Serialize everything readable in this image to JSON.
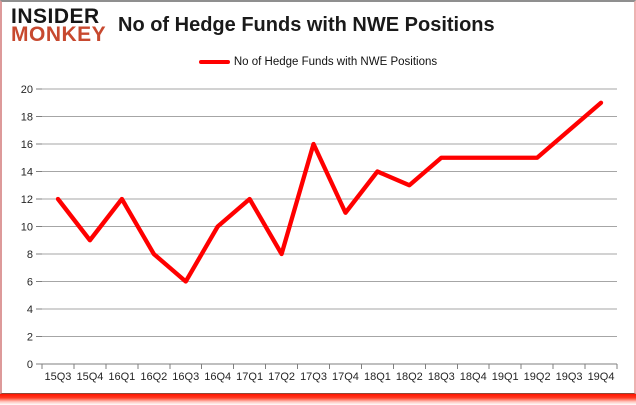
{
  "logo": {
    "line1": "INSIDER",
    "line2": "MONKEY",
    "line1_color": "#161616",
    "line2_color": "#c7492f"
  },
  "title": "No of Hedge Funds with NWE Positions",
  "legend": {
    "label": "No of Hedge Funds with NWE Positions",
    "swatch_color": "#ff0000"
  },
  "chart_data": {
    "type": "line",
    "title": "No of Hedge Funds with NWE Positions",
    "categories": [
      "15Q3",
      "15Q4",
      "16Q1",
      "16Q2",
      "16Q3",
      "16Q4",
      "17Q1",
      "17Q2",
      "17Q3",
      "17Q4",
      "18Q1",
      "18Q2",
      "18Q3",
      "18Q4",
      "19Q1",
      "19Q2",
      "19Q3",
      "19Q4"
    ],
    "series": [
      {
        "name": "No of Hedge Funds with NWE Positions",
        "color": "#ff0000",
        "values": [
          12,
          9,
          12,
          8,
          6,
          10,
          12,
          8,
          16,
          11,
          14,
          13,
          15,
          15,
          15,
          15,
          17,
          19
        ]
      }
    ],
    "xlabel": "",
    "ylabel": "",
    "ylim": [
      0,
      20
    ],
    "ytick_step": 2,
    "grid": true,
    "legend_position": "top",
    "gridline_color": "#a6a6a6",
    "axis_color": "#7f7f7f",
    "tick_label_color": "#262626"
  }
}
